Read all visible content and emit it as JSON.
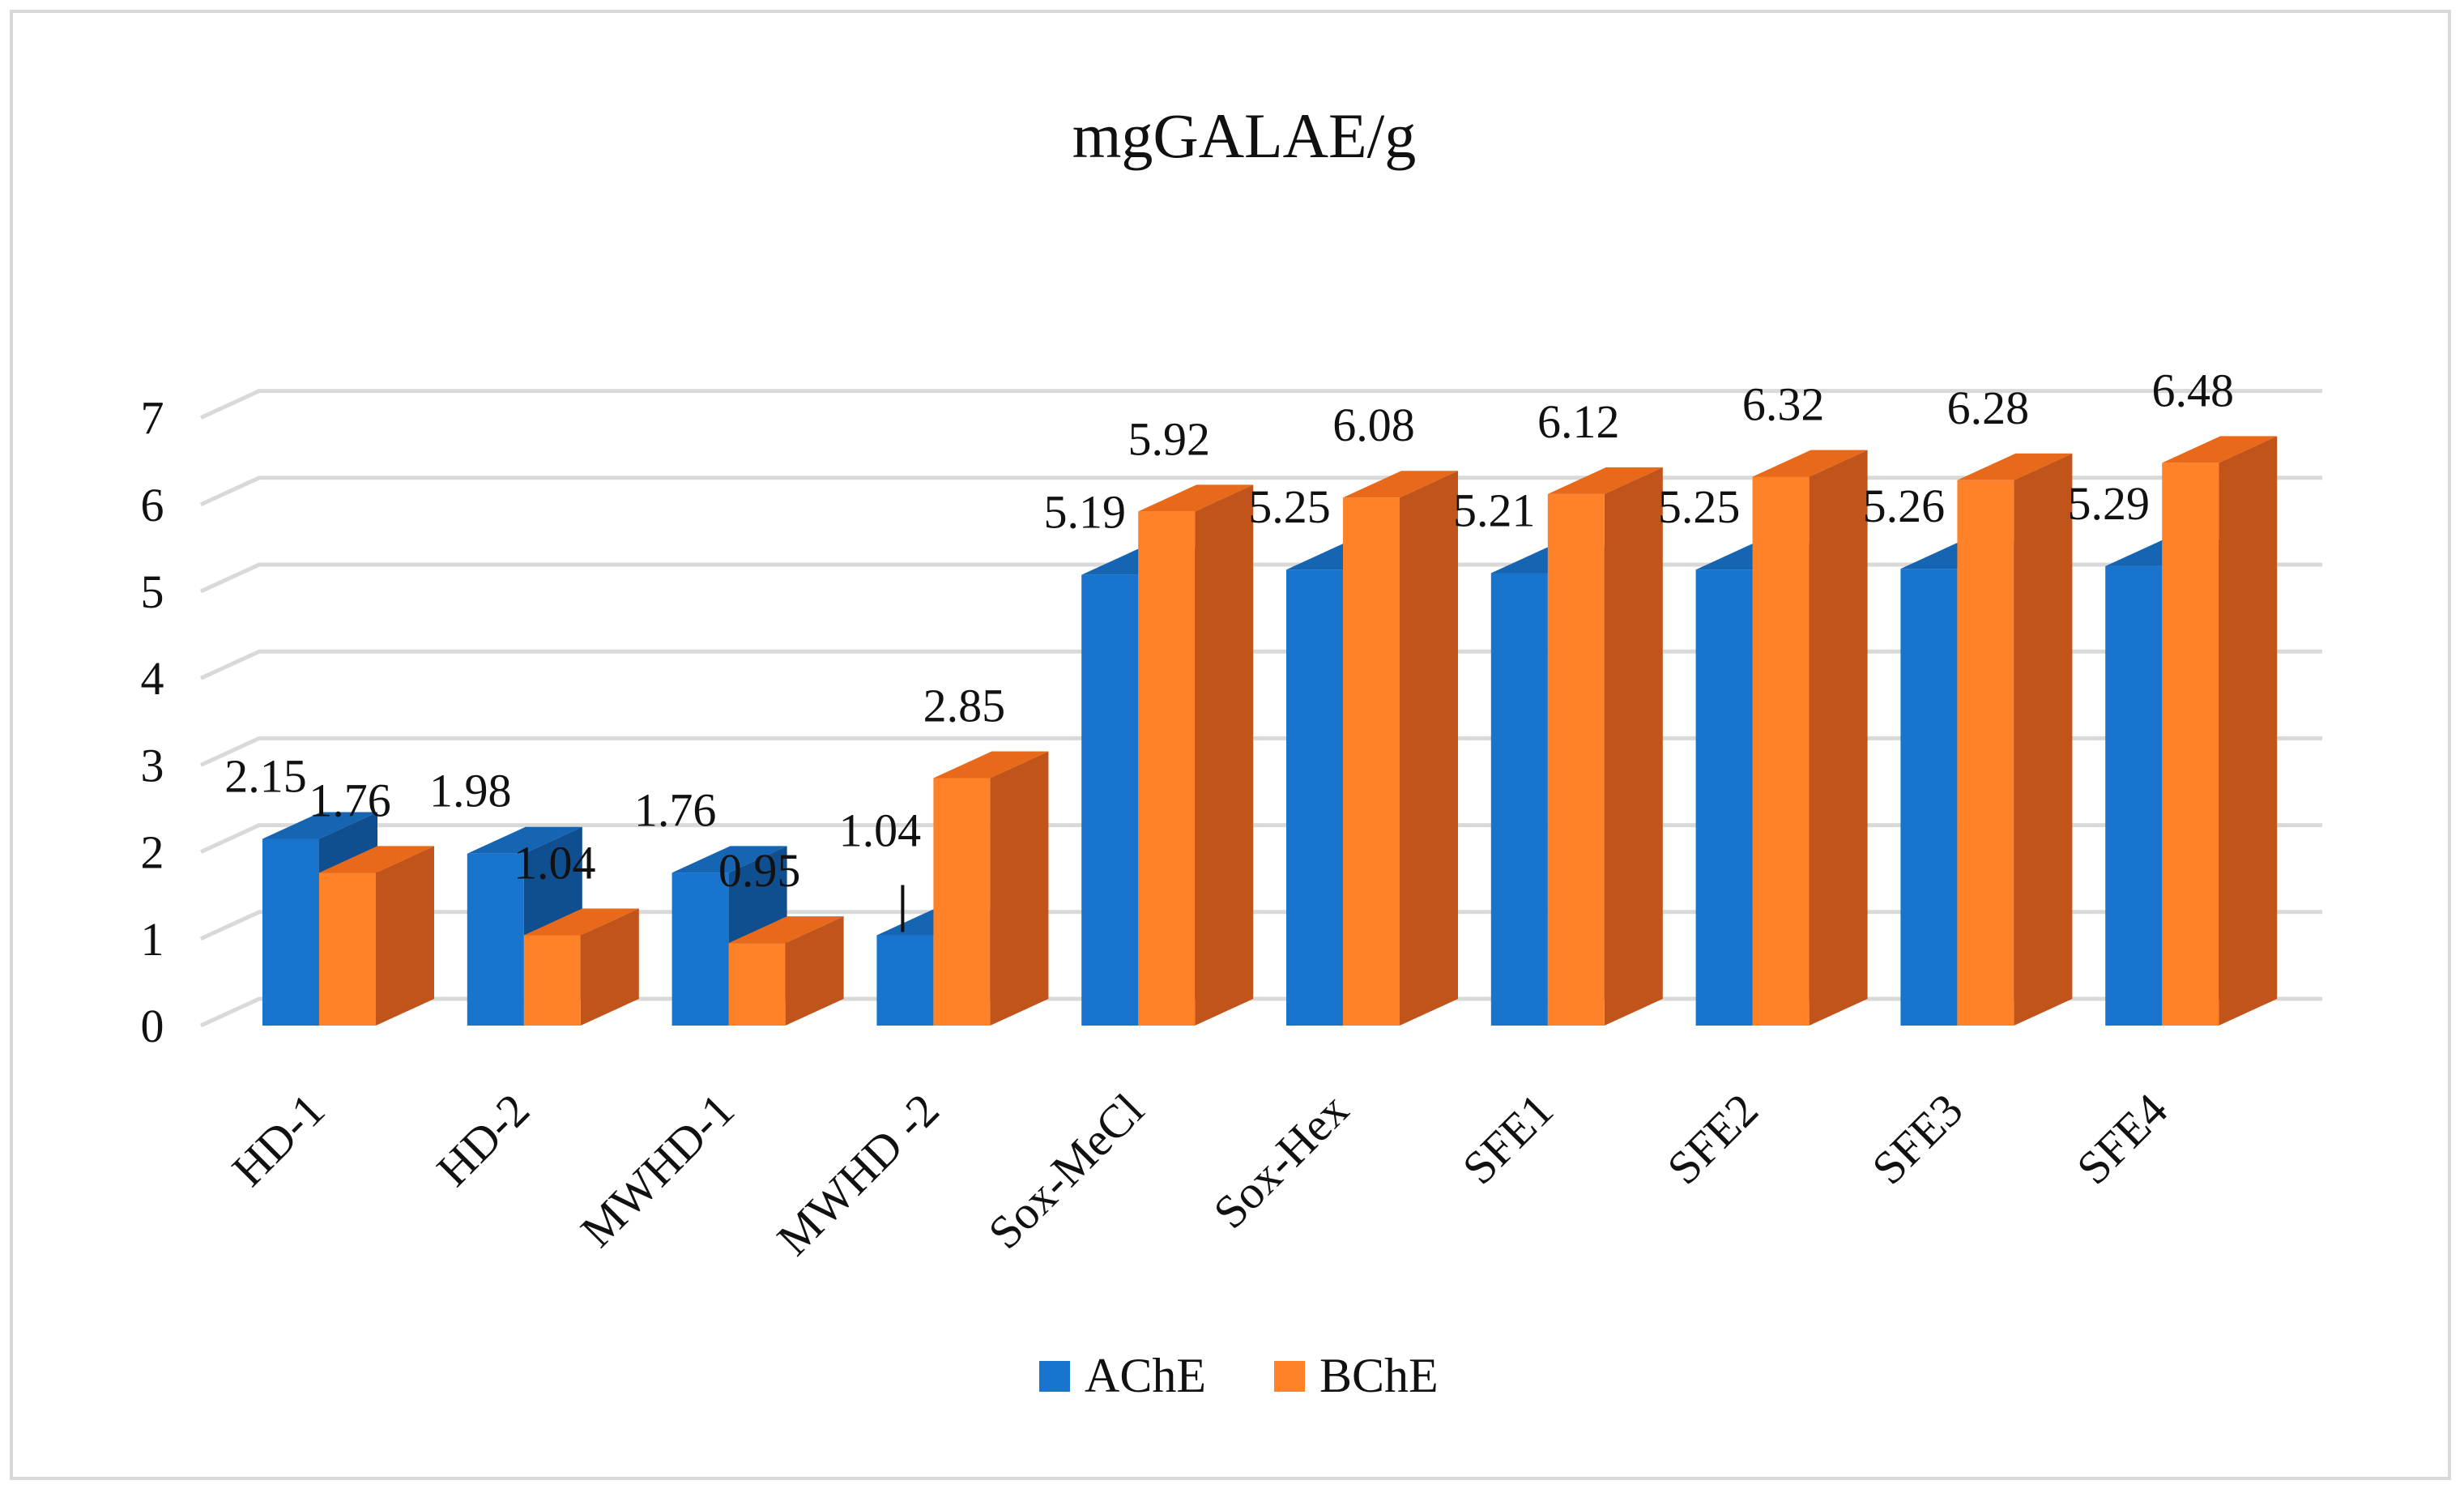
{
  "chart_data": {
    "type": "bar",
    "title": "mgGALAE/g",
    "xlabel": "",
    "ylabel": "",
    "ylim": [
      0,
      7
    ],
    "yticks": [
      0,
      1,
      2,
      3,
      4,
      5,
      6,
      7
    ],
    "grid": true,
    "legend_position": "bottom",
    "categories": [
      "HD-1",
      "HD-2",
      "MWHD-1",
      "MWHD -2",
      "Sox-MeCl",
      "Sox-Hex",
      "SFE1",
      "SFE2",
      "SFE3",
      "SFE4"
    ],
    "series": [
      {
        "name": "AChE",
        "color": "#1874cd",
        "top_color": "#1565b3",
        "side_color": "#0f4f8f",
        "values": [
          2.15,
          1.98,
          1.76,
          1.04,
          5.19,
          5.25,
          5.21,
          5.25,
          5.26,
          5.29
        ],
        "labels": [
          "2.15",
          "1.98",
          "1.76",
          "1.04",
          "5.19",
          "5.25",
          "5.21",
          "5.25",
          "5.26",
          "5.29"
        ]
      },
      {
        "name": "BChE",
        "color": "#ff8128",
        "top_color": "#e8691a",
        "side_color": "#c0541a",
        "values": [
          1.76,
          1.04,
          0.95,
          2.85,
          5.92,
          6.08,
          6.12,
          6.32,
          6.28,
          6.48
        ],
        "labels": [
          "1.76",
          "1.04",
          "0.95",
          "2.85",
          "5.92",
          "6.08",
          "6.12",
          "6.32",
          "6.28",
          "6.48"
        ]
      }
    ]
  }
}
